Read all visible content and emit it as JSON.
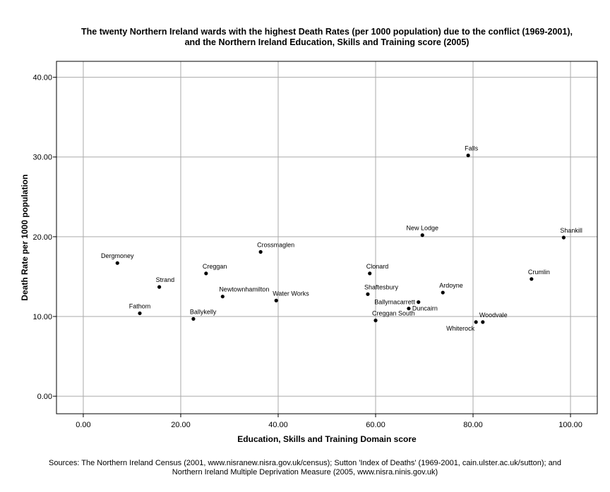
{
  "chart_data": {
    "type": "scatter",
    "title_lines": [
      "The twenty Northern Ireland wards with the highest Death Rates (per 1000 population) due to the conflict (1969-2001),",
      "and the Northern Ireland Education, Skills and Training score (2005)"
    ],
    "xlabel": "Education, Skills and Training Domain score",
    "ylabel": "Death Rate per 1000 population",
    "xlim": [
      -5.5,
      105.5
    ],
    "ylim": [
      -2.2,
      42
    ],
    "x_ticks": [
      {
        "value": 0,
        "label": "0.00"
      },
      {
        "value": 20,
        "label": "20.00"
      },
      {
        "value": 40,
        "label": "40.00"
      },
      {
        "value": 60,
        "label": "60.00"
      },
      {
        "value": 80,
        "label": "80.00"
      },
      {
        "value": 100,
        "label": "100.00"
      }
    ],
    "y_ticks": [
      {
        "value": 0,
        "label": "0.00"
      },
      {
        "value": 10,
        "label": "10.00"
      },
      {
        "value": 20,
        "label": "20.00"
      },
      {
        "value": 30,
        "label": "30.00"
      },
      {
        "value": 40,
        "label": "40.00"
      }
    ],
    "grid": true,
    "points": [
      {
        "label": "Dergmoney",
        "x": 7.0,
        "y": 16.7,
        "label_pos": "above"
      },
      {
        "label": "Fathom",
        "x": 11.6,
        "y": 10.4,
        "label_pos": "above"
      },
      {
        "label": "Strand",
        "x": 15.6,
        "y": 13.7,
        "label_pos": "above-right"
      },
      {
        "label": "Ballykelly",
        "x": 22.6,
        "y": 9.7,
        "label_pos": "above-right"
      },
      {
        "label": "Creggan",
        "x": 25.2,
        "y": 15.4,
        "label_pos": "above-right"
      },
      {
        "label": "Newtownhamilton",
        "x": 28.6,
        "y": 12.5,
        "label_pos": "above-right"
      },
      {
        "label": "Crossmaglen",
        "x": 36.4,
        "y": 18.1,
        "label_pos": "above-right"
      },
      {
        "label": "Water Works",
        "x": 39.6,
        "y": 12.0,
        "label_pos": "above-right"
      },
      {
        "label": "Shaftesbury",
        "x": 58.4,
        "y": 12.8,
        "label_pos": "above-right"
      },
      {
        "label": "Clonard",
        "x": 58.8,
        "y": 15.4,
        "label_pos": "above-right"
      },
      {
        "label": "Creggan South",
        "x": 60.0,
        "y": 9.5,
        "label_pos": "above-right"
      },
      {
        "label": "Duncairn",
        "x": 66.8,
        "y": 11.0,
        "label_pos": "right"
      },
      {
        "label": "Ballymacarrett",
        "x": 68.8,
        "y": 11.8,
        "label_pos": "left"
      },
      {
        "label": "New Lodge",
        "x": 69.6,
        "y": 20.2,
        "label_pos": "above"
      },
      {
        "label": "Ardoyne",
        "x": 73.8,
        "y": 13.0,
        "label_pos": "above-right"
      },
      {
        "label": "Falls",
        "x": 79.0,
        "y": 30.2,
        "label_pos": "above-right"
      },
      {
        "label": "Whiterock",
        "x": 80.6,
        "y": 9.3,
        "label_pos": "below-left"
      },
      {
        "label": "Woodvale",
        "x": 82.0,
        "y": 9.3,
        "label_pos": "above-right"
      },
      {
        "label": "Crumlin",
        "x": 92.0,
        "y": 14.7,
        "label_pos": "above-right"
      },
      {
        "label": "Shankill",
        "x": 98.6,
        "y": 19.9,
        "label_pos": "above-right"
      }
    ]
  },
  "sources_lines": [
    "Sources: The Northern Ireland Census (2001, www.nisranew.nisra.gov.uk/census); Sutton 'Index of Deaths' (1969-2001, cain.ulster.ac.uk/sutton); and",
    "Northern Ireland Multiple Deprivation Measure (2005, www.nisra.ninis.gov.uk)"
  ]
}
